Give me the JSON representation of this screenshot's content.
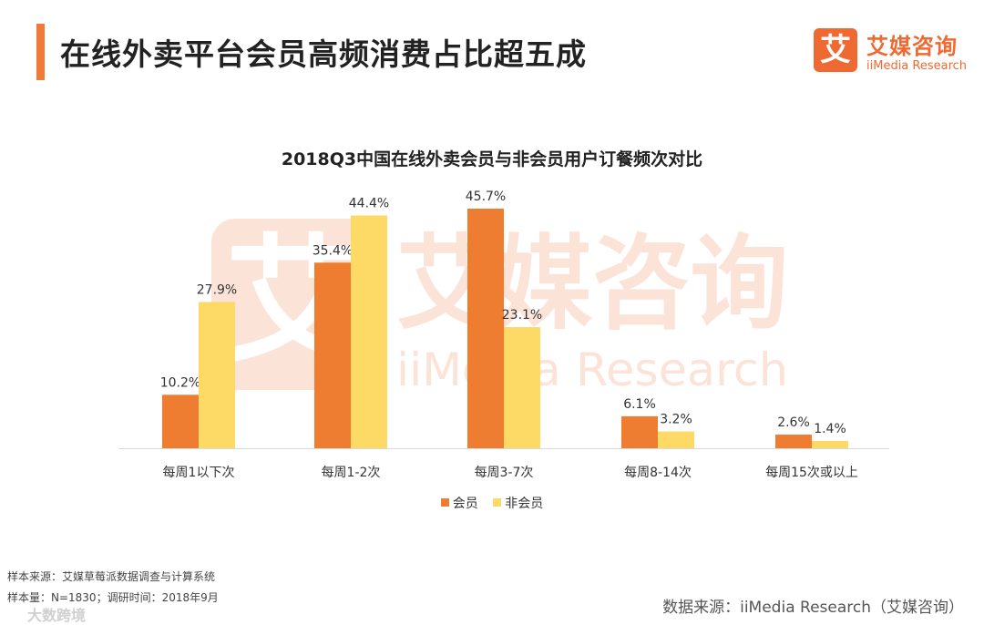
{
  "header": {
    "title": "在线外卖平台会员高频消费占比超五成",
    "logo_mark": "艾",
    "logo_cn": "艾媒咨询",
    "logo_en": "iiMedia Research"
  },
  "watermark": {
    "cn": "艾媒咨询",
    "en": "iiMedia Research"
  },
  "chart_data": {
    "type": "bar",
    "title": "2018Q3中国在线外卖会员与非会员用户订餐频次对比",
    "categories": [
      "每周1以下次",
      "每周1-2次",
      "每周3-7次",
      "每周8-14次",
      "每周15次或以上"
    ],
    "series": [
      {
        "name": "会员",
        "values": [
          10.2,
          35.4,
          45.7,
          6.1,
          2.6
        ],
        "labels": [
          "10.2%",
          "35.4%",
          "45.7%",
          "6.1%",
          "2.6%"
        ],
        "color": "#ee7d31"
      },
      {
        "name": "非会员",
        "values": [
          27.9,
          44.4,
          23.1,
          3.2,
          1.4
        ],
        "labels": [
          "27.9%",
          "44.4%",
          "23.1%",
          "3.2%",
          "1.4%"
        ],
        "color": "#fdd966"
      }
    ],
    "ylim": [
      0,
      50
    ],
    "xlabel": "",
    "ylabel": "",
    "grid": false,
    "legend_position": "bottom"
  },
  "footer": {
    "sample_source": "样本来源：艾媒草莓派数据调查与计算系统",
    "sample_size": "样本量：N=1830；调研时间：2018年9月",
    "data_source": "数据来源：iiMedia Research（艾媒咨询）",
    "stamp": "大数跨境"
  }
}
